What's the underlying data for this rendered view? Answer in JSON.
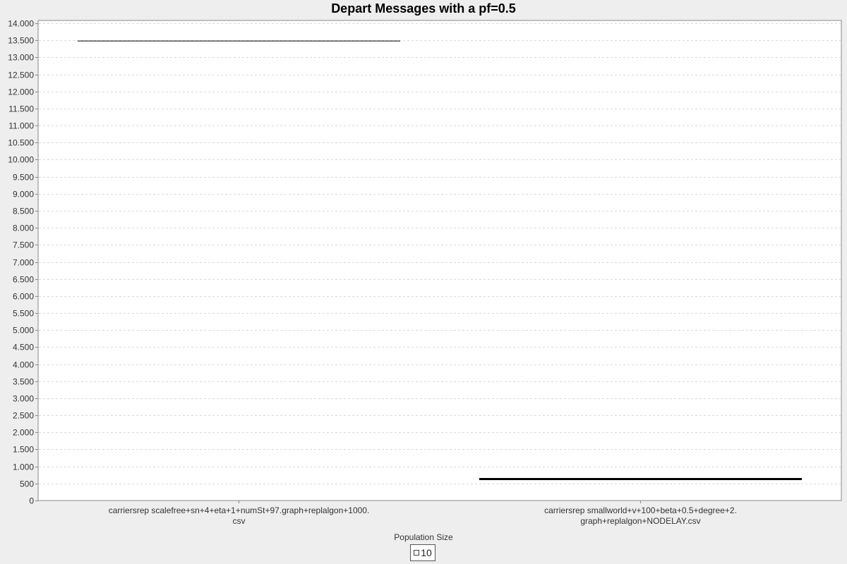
{
  "chart_data": {
    "type": "bar",
    "title": "Depart Messages with a pf=0.5",
    "xlabel": "",
    "ylabel": "",
    "ylim": [
      0,
      14000
    ],
    "ytick_step": 500,
    "grid": true,
    "categories": [
      {
        "line1": "carriersrep scalefree+sn+4+eta+1+numSt+97.graph+replalgon+1000.",
        "line2": "csv"
      },
      {
        "line1": "carriersrep smallworld+v+100+beta+0.5+degree+2.",
        "line2": "graph+replalgon+NODELAY.csv"
      }
    ],
    "series": [
      {
        "name": "10",
        "values": [
          13480,
          630
        ],
        "color": "#000000"
      }
    ],
    "legend": {
      "title": "Population Size",
      "position": "bottom",
      "entries": [
        "10"
      ]
    }
  }
}
